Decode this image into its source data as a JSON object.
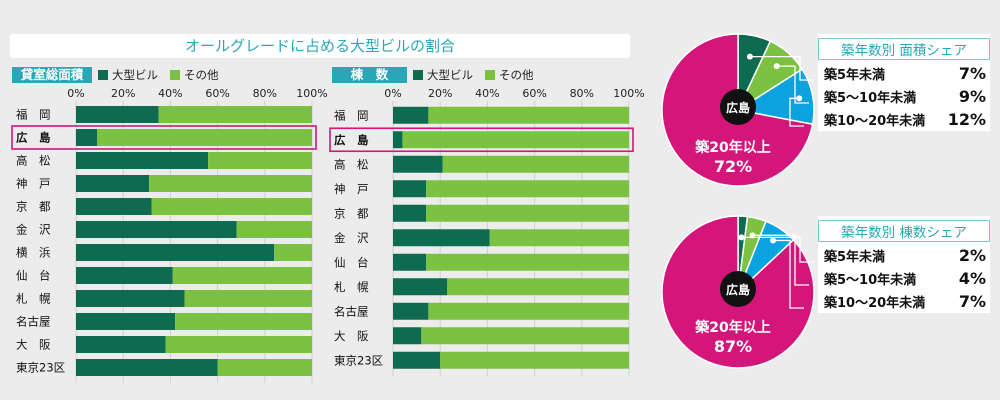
{
  "title": "オールグレードに占める大型ビルの割合",
  "legend": {
    "large": "大型ビル",
    "other": "その他"
  },
  "colors": {
    "large": "#0e6b4f",
    "other": "#7cc242",
    "highlight": "#d4157a",
    "accent": "#2aa7b6",
    "mid": "#0aa3e0"
  },
  "chart_data": [
    {
      "type": "bar",
      "title": "貸室総面積",
      "x_ticks": [
        "0%",
        "20%",
        "40%",
        "60%",
        "80%",
        "100%"
      ],
      "xlim": [
        0,
        100
      ],
      "categories": [
        "福　岡",
        "広　島",
        "高　松",
        "神　戸",
        "京　都",
        "金　沢",
        "横　浜",
        "仙　台",
        "札　幌",
        "名古屋",
        "大　阪",
        "東京23区"
      ],
      "series": [
        {
          "name": "大型ビル",
          "values": [
            35,
            9,
            56,
            31,
            32,
            68,
            84,
            41,
            46,
            42,
            38,
            60
          ]
        },
        {
          "name": "その他",
          "values": [
            65,
            91,
            44,
            69,
            68,
            32,
            16,
            59,
            54,
            58,
            62,
            40
          ]
        }
      ],
      "highlight": "広　島"
    },
    {
      "type": "bar",
      "title": "棟　数",
      "x_ticks": [
        "0%",
        "20%",
        "40%",
        "60%",
        "80%",
        "100%"
      ],
      "xlim": [
        0,
        100
      ],
      "categories": [
        "福　岡",
        "広　島",
        "高　松",
        "神　戸",
        "京　都",
        "金　沢",
        "仙　台",
        "札　幌",
        "名古屋",
        "大　阪",
        "東京23区"
      ],
      "series": [
        {
          "name": "大型ビル",
          "values": [
            15,
            4,
            21,
            14,
            14,
            41,
            14,
            23,
            15,
            12,
            20
          ]
        },
        {
          "name": "その他",
          "values": [
            85,
            96,
            79,
            86,
            86,
            59,
            86,
            77,
            85,
            88,
            80
          ]
        }
      ],
      "highlight": "広　島"
    },
    {
      "type": "pie",
      "title": "築年数別 面積シェア",
      "center_label": "広島",
      "main_label": "築20年以上",
      "main_value": "72%",
      "slices": [
        {
          "label": "築5年未満",
          "value": 7,
          "display": "7%"
        },
        {
          "label": "築5～10年未満",
          "value": 9,
          "display": "9%"
        },
        {
          "label": "築10～20年未満",
          "value": 12,
          "display": "12%"
        },
        {
          "label": "築20年以上",
          "value": 72
        }
      ]
    },
    {
      "type": "pie",
      "title": "築年数別 棟数シェア",
      "center_label": "広島",
      "main_label": "築20年以上",
      "main_value": "87%",
      "slices": [
        {
          "label": "築5年未満",
          "value": 2,
          "display": "2%"
        },
        {
          "label": "築5～10年未満",
          "value": 4,
          "display": "4%"
        },
        {
          "label": "築10～20年未満",
          "value": 7,
          "display": "7%"
        },
        {
          "label": "築20年以上",
          "value": 87
        }
      ]
    }
  ]
}
